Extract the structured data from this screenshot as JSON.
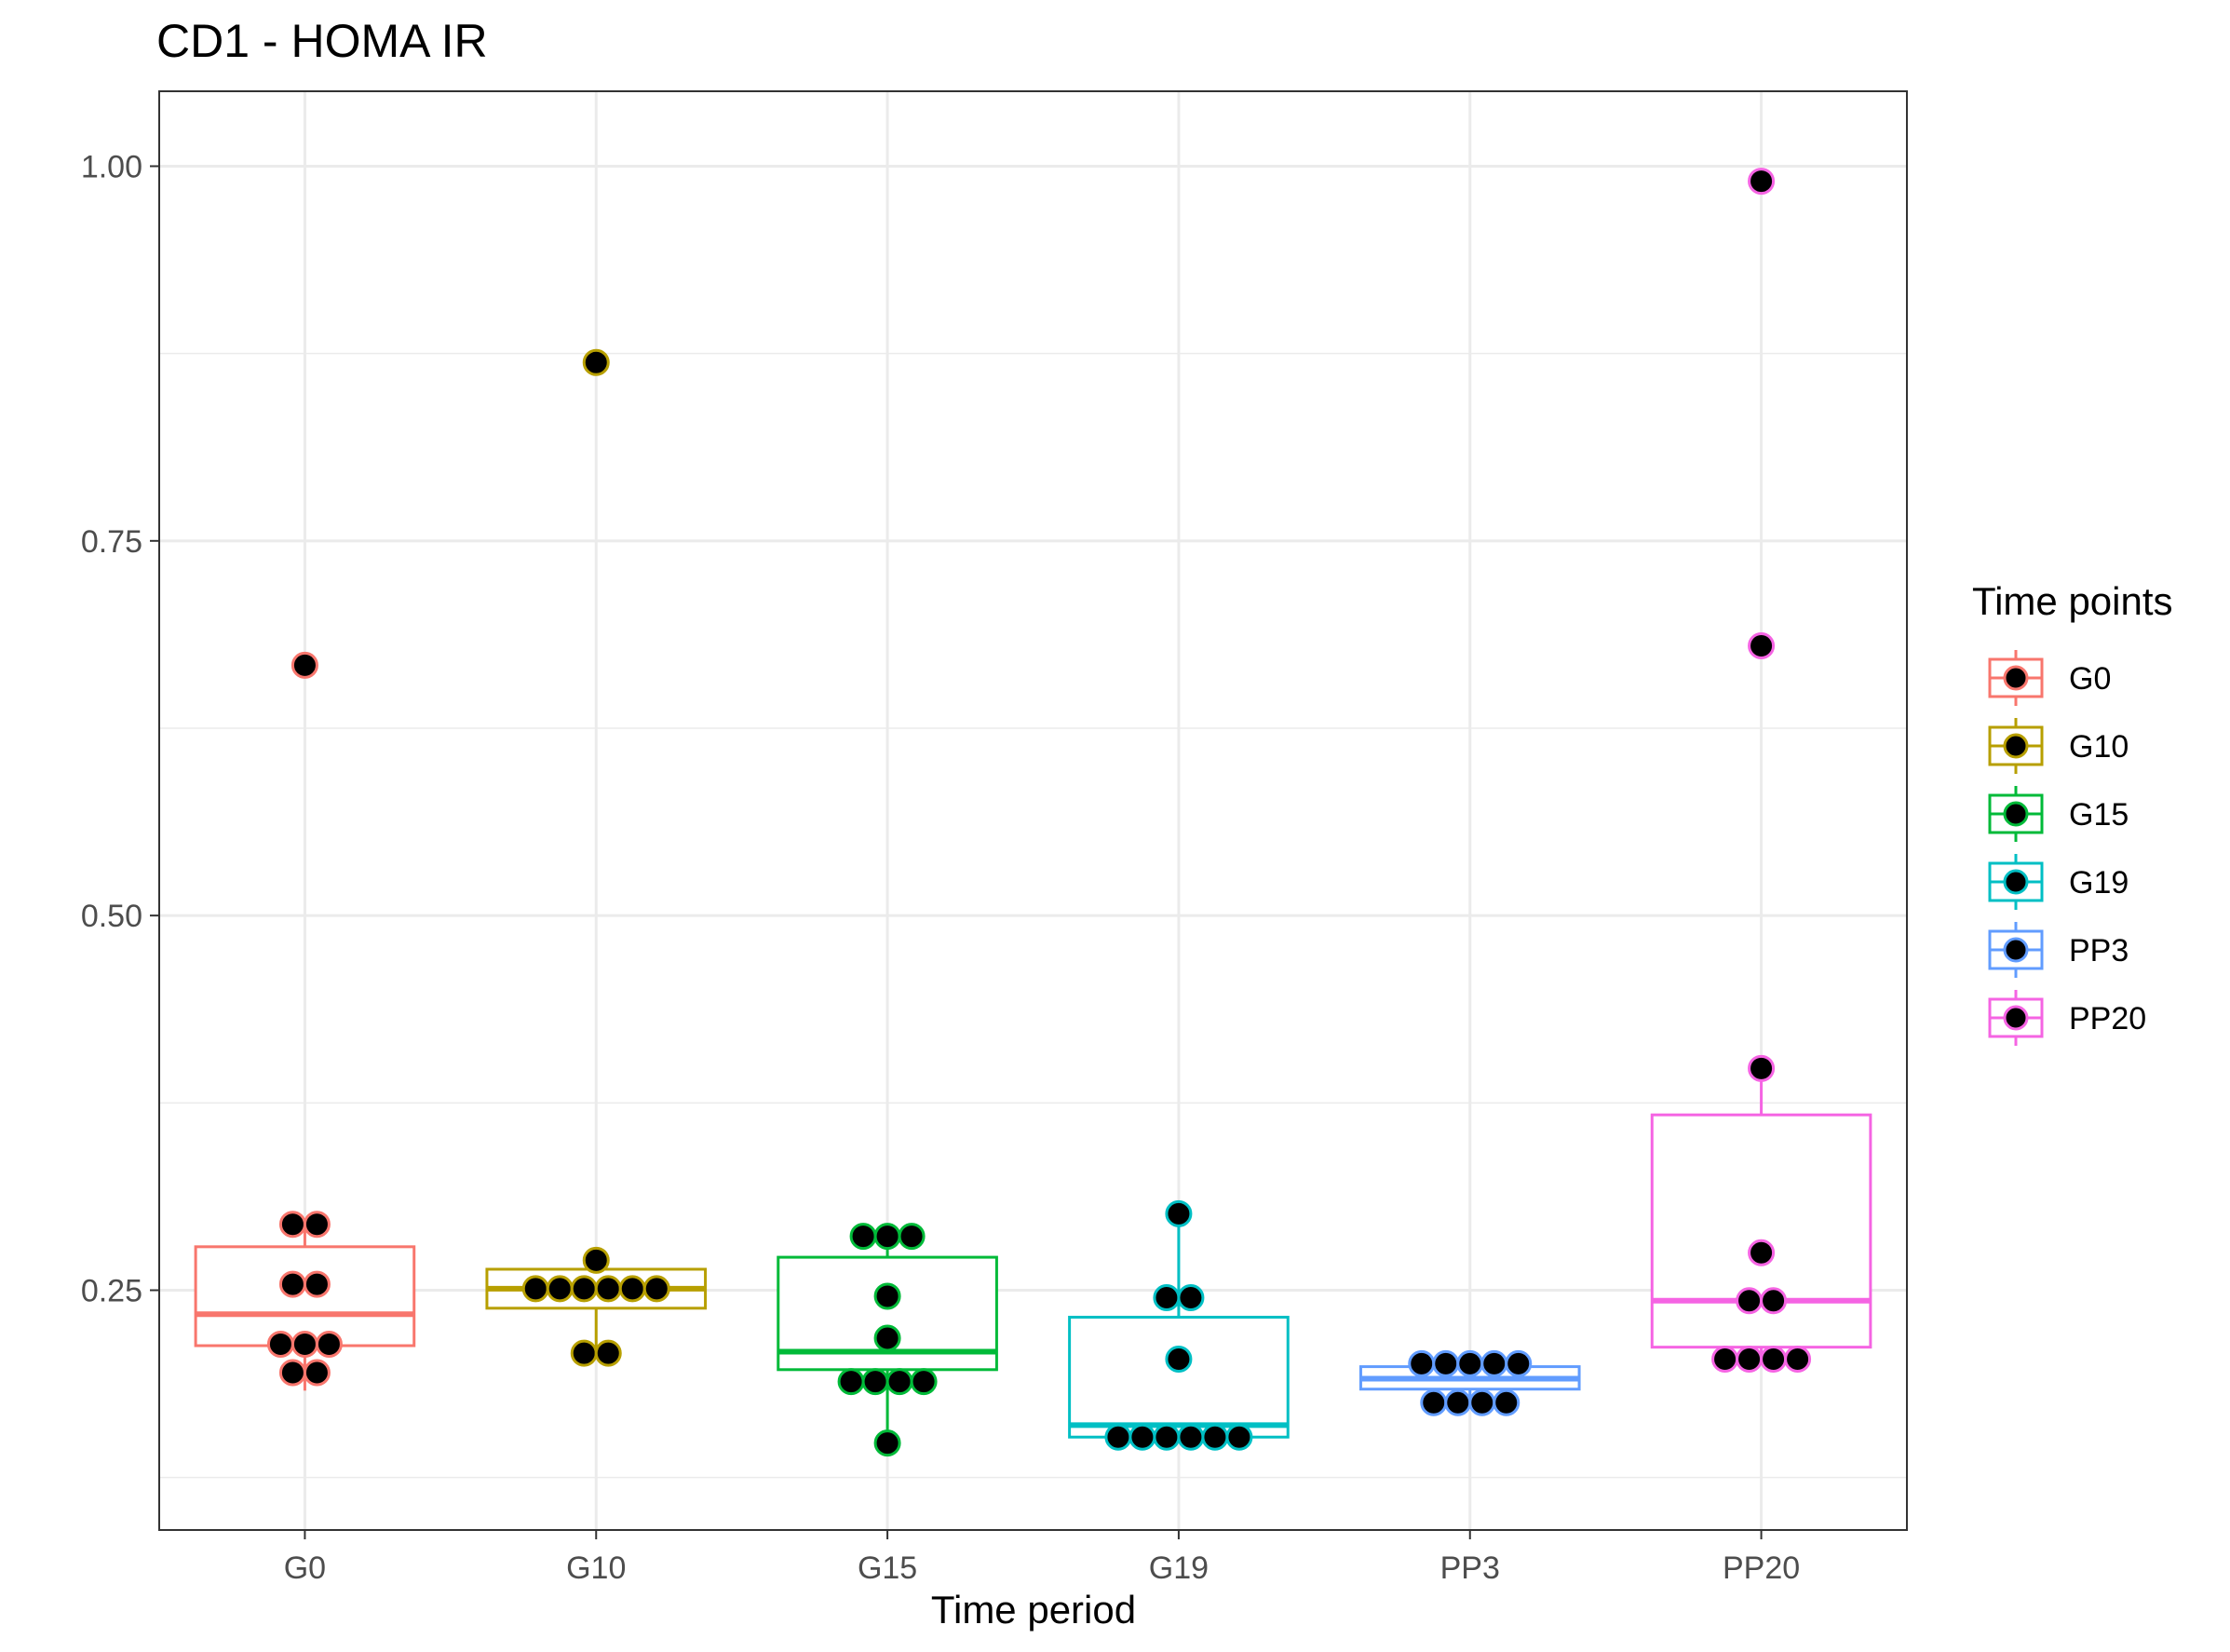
{
  "chart_data": {
    "type": "box",
    "title": "CD1 - HOMA IR",
    "xlabel": "Time period",
    "ylabel": "",
    "ylim": [
      0.09,
      1.05
    ],
    "y_ticks": [
      "0.25",
      "0.50",
      "0.75",
      "1.00"
    ],
    "categories": [
      "G0",
      "G10",
      "G15",
      "G19",
      "PP3",
      "PP20"
    ],
    "legend": {
      "title": "Time points",
      "position": "right"
    },
    "grid": true,
    "series": [
      {
        "name": "G0",
        "color": "#F8766D",
        "box": {
          "min": 0.183,
          "q1": 0.213,
          "median": 0.234,
          "q3": 0.279,
          "max": 0.294
        },
        "points": [
          0.667,
          0.294,
          0.294,
          0.254,
          0.254,
          0.214,
          0.214,
          0.214,
          0.195,
          0.195
        ]
      },
      {
        "name": "G10",
        "color": "#B79F00",
        "box": {
          "min": 0.208,
          "q1": 0.238,
          "median": 0.251,
          "q3": 0.264,
          "max": 0.27
        },
        "points": [
          0.869,
          0.27,
          0.251,
          0.251,
          0.251,
          0.251,
          0.251,
          0.251,
          0.208,
          0.208
        ]
      },
      {
        "name": "G15",
        "color": "#00BA38",
        "box": {
          "min": 0.148,
          "q1": 0.197,
          "median": 0.209,
          "q3": 0.272,
          "max": 0.286
        },
        "points": [
          0.286,
          0.286,
          0.286,
          0.246,
          0.218,
          0.189,
          0.189,
          0.189,
          0.189,
          0.148
        ]
      },
      {
        "name": "G19",
        "color": "#00BFC4",
        "box": {
          "min": 0.152,
          "q1": 0.152,
          "median": 0.16,
          "q3": 0.232,
          "max": 0.301
        },
        "points": [
          0.301,
          0.245,
          0.245,
          0.204,
          0.152,
          0.152,
          0.152,
          0.152,
          0.152,
          0.152
        ]
      },
      {
        "name": "PP3",
        "color": "#619CFF",
        "box": {
          "min": 0.175,
          "q1": 0.184,
          "median": 0.191,
          "q3": 0.199,
          "max": 0.201
        },
        "points": [
          0.201,
          0.201,
          0.201,
          0.201,
          0.201,
          0.175,
          0.175,
          0.175,
          0.175
        ]
      },
      {
        "name": "PP20",
        "color": "#F564E3",
        "box": {
          "min": 0.204,
          "q1": 0.212,
          "median": 0.243,
          "q3": 0.367,
          "max": 0.398
        },
        "points": [
          0.99,
          0.68,
          0.398,
          0.275,
          0.243,
          0.243,
          0.204,
          0.204,
          0.204,
          0.204
        ]
      }
    ]
  }
}
